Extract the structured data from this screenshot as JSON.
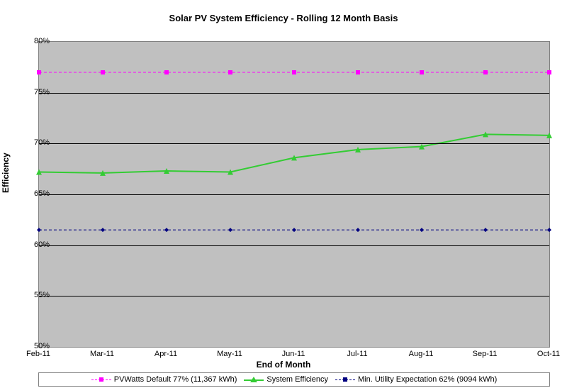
{
  "chart": {
    "type": "line",
    "title": "Solar PV System Efficiency - Rolling 12 Month Basis",
    "title_fontsize": 13,
    "x_axis_title": "End of Month",
    "y_axis_title": "Efficiency",
    "background_color": "#ffffff",
    "plot_background_color": "#c0c0c0",
    "grid_color": "#000000",
    "border_color": "#808080",
    "ylim": [
      50,
      80
    ],
    "ytick_step": 5,
    "yticks": [
      "50%",
      "55%",
      "60%",
      "65%",
      "70%",
      "75%",
      "80%"
    ],
    "categories": [
      "Feb-11",
      "Mar-11",
      "Apr-11",
      "May-11",
      "Jun-11",
      "Jul-11",
      "Aug-11",
      "Sep-11",
      "Oct-11"
    ],
    "label_fontsize": 11,
    "axis_title_fontsize": 12,
    "series": [
      {
        "name": "PVWatts Default 77% (11,367 kWh)",
        "color": "#ff00ff",
        "line_style": "dashed",
        "line_width": 1,
        "marker": "square",
        "marker_size": 6,
        "values": [
          77,
          77,
          77,
          77,
          77,
          77,
          77,
          77,
          77
        ]
      },
      {
        "name": "System Efficiency",
        "color": "#33cc33",
        "line_style": "solid",
        "line_width": 2,
        "marker": "triangle",
        "marker_size": 8,
        "values": [
          67.2,
          67.1,
          67.3,
          67.2,
          68.6,
          69.4,
          69.7,
          70.9,
          70.8
        ]
      },
      {
        "name": "Min. Utility Expectation 62% (9094 kWh)",
        "color": "#000080",
        "line_style": "dashed",
        "line_width": 1,
        "marker": "diamond",
        "marker_size": 6,
        "values": [
          61.5,
          61.5,
          61.5,
          61.5,
          61.5,
          61.5,
          61.5,
          61.5,
          61.5
        ]
      }
    ]
  }
}
